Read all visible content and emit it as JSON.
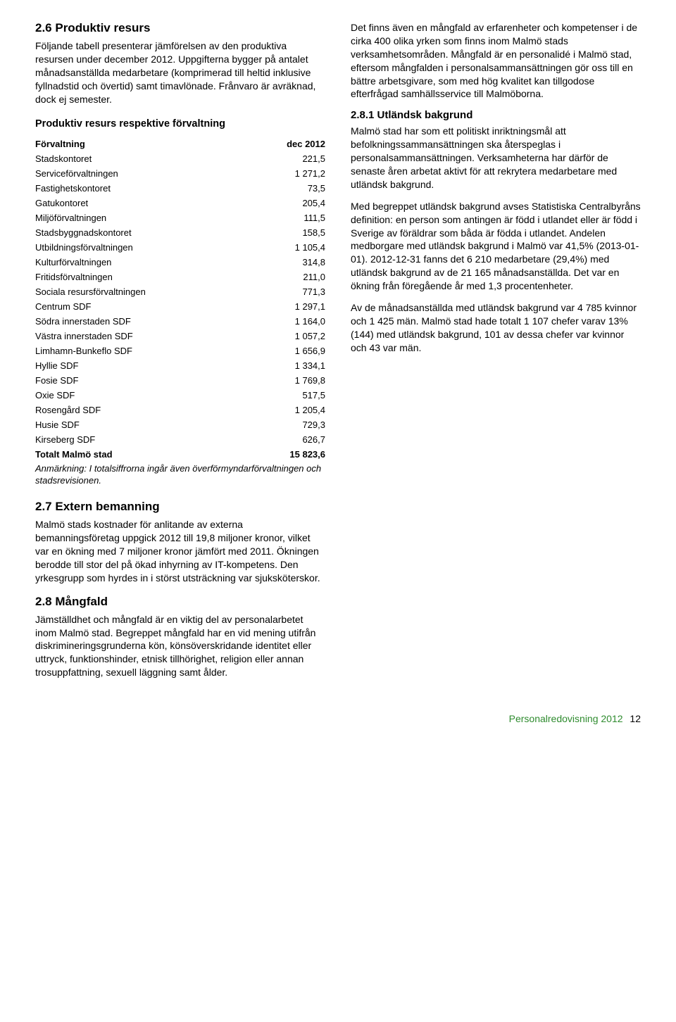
{
  "left": {
    "s1": {
      "heading": "2.6 Produktiv resurs",
      "p1": "Följande tabell presenterar jämförelsen av den produktiva resursen under december 2012. Uppgifterna bygger på antalet månadsanställda medarbetare (komprimerad till heltid inklusive fyllnadstid och övertid) samt timavlönade. Frånvaro är avräknad, dock ej semester."
    },
    "table": {
      "title": "Produktiv resurs respektive förvaltning",
      "col1": "Förvaltning",
      "col2": "dec 2012",
      "rows": [
        {
          "name": "Stadskontoret",
          "val": "221,5"
        },
        {
          "name": "Serviceförvaltningen",
          "val": "1 271,2"
        },
        {
          "name": "Fastighetskontoret",
          "val": "73,5"
        },
        {
          "name": "Gatukontoret",
          "val": "205,4"
        },
        {
          "name": "Miljöförvaltningen",
          "val": "111,5"
        },
        {
          "name": "Stadsbyggnadskontoret",
          "val": "158,5"
        },
        {
          "name": "Utbildningsförvaltningen",
          "val": "1 105,4"
        },
        {
          "name": "Kulturförvaltningen",
          "val": "314,8"
        },
        {
          "name": "Fritidsförvaltningen",
          "val": "211,0"
        },
        {
          "name": "Sociala resursförvaltningen",
          "val": "771,3"
        },
        {
          "name": "Centrum SDF",
          "val": "1 297,1"
        },
        {
          "name": "Södra innerstaden SDF",
          "val": "1 164,0"
        },
        {
          "name": "Västra innerstaden SDF",
          "val": "1 057,2"
        },
        {
          "name": "Limhamn-Bunkeflo SDF",
          "val": "1 656,9"
        },
        {
          "name": "Hyllie SDF",
          "val": "1 334,1"
        },
        {
          "name": "Fosie SDF",
          "val": "1 769,8"
        },
        {
          "name": "Oxie SDF",
          "val": "517,5"
        },
        {
          "name": "Rosengård SDF",
          "val": "1 205,4"
        },
        {
          "name": "Husie SDF",
          "val": "729,3"
        },
        {
          "name": "Kirseberg SDF",
          "val": "626,7"
        }
      ],
      "total": {
        "name": "Totalt Malmö stad",
        "val": "15 823,6"
      },
      "note": "Anmärkning: I totalsiffrorna ingår även överförmyndarförvaltningen och stadsrevisionen."
    },
    "s2": {
      "heading": "2.7 Extern bemanning",
      "p1": "Malmö stads kostnader för anlitande av externa bemanningsföretag uppgick 2012 till 19,8 miljoner kronor, vilket var en ökning med 7 miljoner kronor jämfört med 2011. Ökningen berodde till stor del på ökad inhyrning av IT-kompetens. Den yrkesgrupp som hyrdes in i störst utsträckning var sjuksköterskor."
    },
    "s3": {
      "heading": "2.8 Mångfald",
      "p1": "Jämställdhet och mångfald är en viktig del av personalarbetet inom Malmö stad. Begreppet mångfald har en vid mening utifrån diskrimineringsgrunderna kön, könsöverskridande identitet eller uttryck, funktionshinder, etnisk tillhörighet, religion eller annan trosuppfattning, sexuell läggning samt ålder."
    }
  },
  "right": {
    "p1": "Det finns även en mångfald av erfarenheter och kompetenser i de cirka 400 olika yrken som finns inom Malmö stads verksamhetsområden. Mångfald är en personalidé i Malmö stad, eftersom mångfalden i personalsammansättningen gör oss till en bättre arbetsgivare, som med hög kvalitet kan tillgodose efterfrågad samhällsservice till Malmöborna.",
    "s1": {
      "heading": "2.8.1 Utländsk bakgrund",
      "p1": "Malmö stad har som ett politiskt inriktningsmål att befolkningssammansättningen ska återspeglas i personalsammansättningen. Verksamheterna har därför de senaste åren arbetat aktivt för att rekrytera medarbetare med utländsk bakgrund.",
      "p2": "Med begreppet utländsk bakgrund avses Statistiska Centralbyråns definition: en person som antingen är född i utlandet eller är född i Sverige av föräldrar som båda är födda i utlandet. Andelen medborgare med utländsk bakgrund i Malmö var 41,5% (2013-01-01). 2012-12-31 fanns det 6 210 medarbetare (29,4%) med utländsk bakgrund av de 21 165 månadsanställda. Det var en ökning från föregående år med 1,3 procentenheter.",
      "p3": "Av de månadsanställda med utländsk bakgrund var 4 785 kvinnor och 1 425 män. Malmö stad hade totalt 1 107 chefer varav 13% (144) med utländsk bakgrund, 101 av dessa chefer var kvinnor och 43 var män."
    }
  },
  "footer": {
    "text": "Personalredovisning 2012",
    "page": "12"
  }
}
